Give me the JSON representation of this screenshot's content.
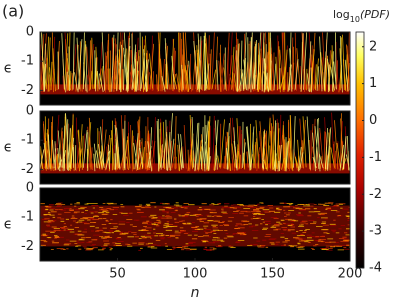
{
  "panel_label": "(a)",
  "chart_data": [
    {
      "type": "heatmap",
      "ylabel": "ϵ",
      "ylim": [
        -2.5,
        0
      ],
      "yticks": [
        0,
        -1,
        -2
      ],
      "xlim": [
        0,
        200
      ]
    },
    {
      "type": "heatmap",
      "ylabel": "ϵ",
      "ylim": [
        -2.5,
        0
      ],
      "yticks": [
        0,
        -1,
        -2
      ],
      "xlim": [
        0,
        200
      ]
    },
    {
      "type": "heatmap",
      "ylabel": "ϵ",
      "ylim": [
        -2.5,
        0
      ],
      "yticks": [
        0,
        -1,
        -2
      ],
      "xlim": [
        0,
        200
      ],
      "xlabel": "n",
      "xticks": [
        50,
        100,
        150,
        200
      ]
    }
  ],
  "colorbar": {
    "label": {
      "base": "log",
      "sub": "10",
      "arg": "(PDF)"
    },
    "lim": [
      -4,
      2.4
    ],
    "ticks": [
      2,
      1,
      0,
      -1,
      -2,
      -3,
      -4
    ]
  }
}
